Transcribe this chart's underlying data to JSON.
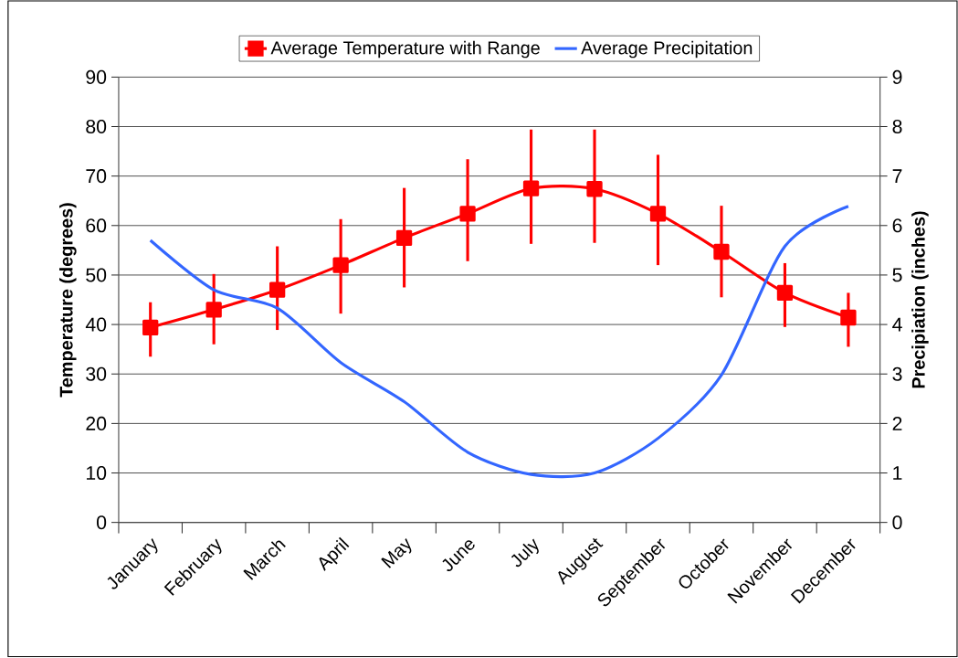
{
  "chart_data": {
    "type": "line",
    "categories": [
      "January",
      "February",
      "March",
      "April",
      "May",
      "June",
      "July",
      "August",
      "September",
      "October",
      "November",
      "December"
    ],
    "series": [
      {
        "name": "Average Temperature with Range",
        "color": "#ff0000",
        "marker": "square",
        "values": [
          39.4,
          43,
          47,
          52,
          57.5,
          62.4,
          67.5,
          67.4,
          62.4,
          54.7,
          46.4,
          41.4
        ],
        "errors": [
          [
            33.5,
            44.5
          ],
          [
            36,
            50.2
          ],
          [
            38.9,
            55.8
          ],
          [
            42.2,
            61.3
          ],
          [
            47.5,
            67.6
          ],
          [
            52.8,
            73.4
          ],
          [
            56.3,
            79.4
          ],
          [
            56.5,
            79.4
          ],
          [
            52,
            74.3
          ],
          [
            45.5,
            64
          ],
          [
            39.5,
            52.4
          ],
          [
            35.5,
            46.4
          ]
        ]
      },
      {
        "name": "Average Precipitation",
        "color": "#3366ff",
        "axis": "y2",
        "marker": "none",
        "values": [
          5.7,
          4.7,
          4.33,
          3.23,
          2.44,
          1.42,
          0.97,
          1.0,
          1.7,
          2.98,
          5.58,
          6.39
        ]
      }
    ],
    "ylabel": "Temperature (degrees)",
    "y2label": "Precipiation (inches)",
    "ylim": [
      0,
      90
    ],
    "yticks": [
      0,
      10,
      20,
      30,
      40,
      50,
      60,
      70,
      80,
      90
    ],
    "y2lim": [
      0,
      9
    ],
    "y2ticks": [
      0,
      1,
      2,
      3,
      4,
      5,
      6,
      7,
      8,
      9
    ],
    "grid": "y",
    "legend": "top"
  }
}
